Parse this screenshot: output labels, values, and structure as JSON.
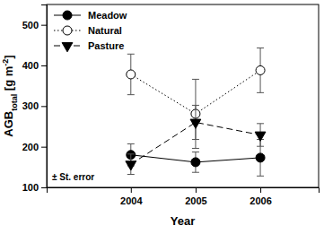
{
  "chart_data": {
    "type": "line",
    "xlabel": "Year",
    "ylabel": {
      "text": "AGB",
      "sub": "total",
      "unit": " [g m",
      "sup": "-2",
      "close": "]"
    },
    "annotation": "± St. error",
    "x": [
      2004,
      2005,
      2006
    ],
    "xlim": [
      2002.7,
      2006.9
    ],
    "xticks": [
      2004,
      2005,
      2006
    ],
    "ylim": [
      100,
      550
    ],
    "yticks": [
      100,
      200,
      300,
      400,
      500
    ],
    "legend": "upper left",
    "series": [
      {
        "name": "Meadow",
        "color": "#000000",
        "marker": "circle",
        "line_style": "solid",
        "values": [
          180,
          162,
          173
        ],
        "errors": [
          27,
          25,
          45
        ]
      },
      {
        "name": "Natural",
        "color": "#000000",
        "marker": "open-circle",
        "line_style": "dotted",
        "values": [
          378,
          281,
          388
        ],
        "errors": [
          50,
          85,
          55
        ]
      },
      {
        "name": "Pasture",
        "color": "#000000",
        "marker": "triangle-down",
        "line_style": "dashed",
        "values": [
          157,
          260,
          229
        ],
        "errors": [
          25,
          42,
          28
        ]
      }
    ]
  }
}
